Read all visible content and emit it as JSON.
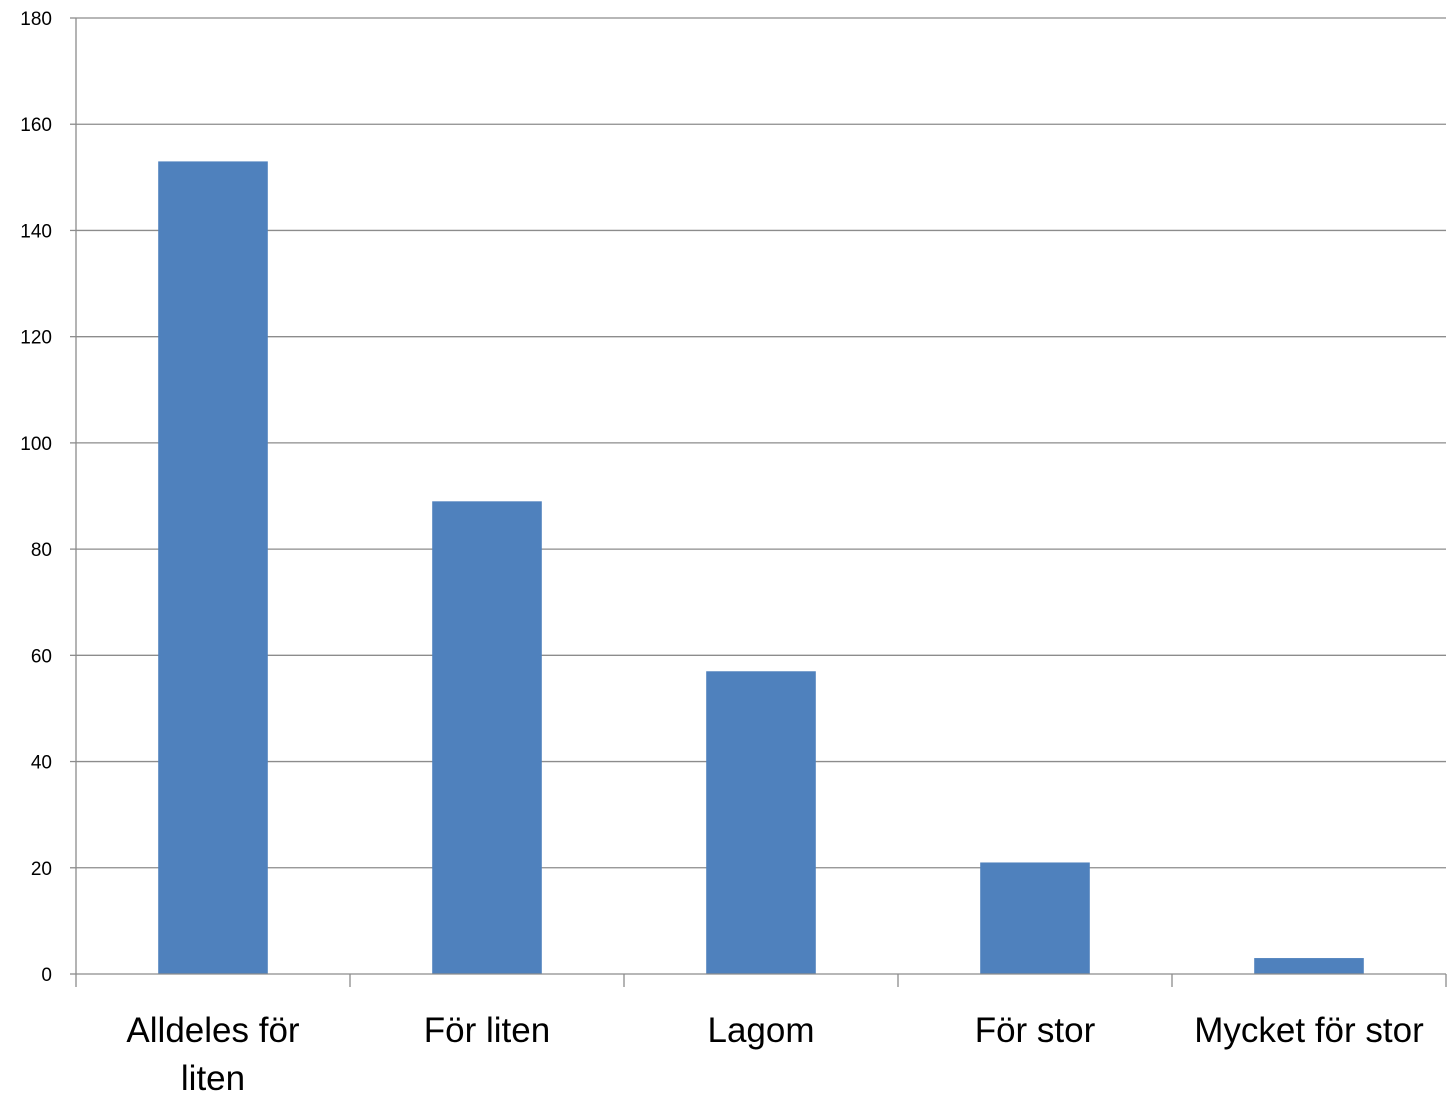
{
  "chart_data": {
    "type": "bar",
    "categories": [
      "Alldeles för liten",
      "För liten",
      "Lagom",
      "För stor",
      "Mycket för stor"
    ],
    "category_lines": [
      [
        "Alldeles för",
        "liten"
      ],
      [
        "För liten"
      ],
      [
        "Lagom"
      ],
      [
        "För stor"
      ],
      [
        "Mycket för stor"
      ]
    ],
    "values": [
      153,
      89,
      57,
      21,
      3
    ],
    "ylim": [
      0,
      180
    ],
    "yticks": [
      0,
      20,
      40,
      60,
      80,
      100,
      120,
      140,
      160,
      180
    ],
    "grid": true,
    "legend": "none",
    "colors": {
      "bar": "#4f81bd",
      "grid": "#8c8c8c",
      "text": "#000000"
    }
  }
}
